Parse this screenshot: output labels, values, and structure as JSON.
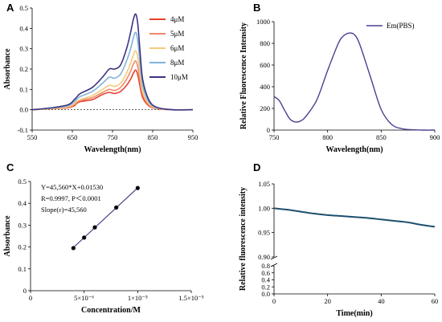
{
  "chart_data": [
    {
      "panel": "A",
      "type": "line",
      "xlabel": "Wavelength(nm)",
      "ylabel": "Absorbance",
      "xlim": [
        550,
        950
      ],
      "ylim": [
        -0.1,
        0.5
      ],
      "xticks": [
        550,
        650,
        750,
        850,
        950
      ],
      "yticks": [
        -0.1,
        0.0,
        0.1,
        0.2,
        0.3,
        0.4,
        0.5
      ],
      "ytick_labels": [
        "-0.1",
        "0.0",
        "0.1",
        "0.2",
        "0.3",
        "0.4",
        "0.5"
      ],
      "legend_position": "top-right",
      "x": [
        550,
        600,
        640,
        655,
        660,
        670,
        700,
        725,
        742,
        755,
        770,
        785,
        795,
        802,
        808,
        813,
        818,
        825,
        840,
        860,
        900,
        950
      ],
      "series": [
        {
          "name": "4μM",
          "color": "#e8402e",
          "values": [
            0.0,
            0.005,
            0.01,
            0.02,
            0.03,
            0.04,
            0.05,
            0.075,
            0.085,
            0.08,
            0.09,
            0.12,
            0.15,
            0.18,
            0.195,
            0.17,
            0.12,
            0.06,
            0.02,
            0.005,
            0.0,
            0.0
          ]
        },
        {
          "name": "5μM",
          "color": "#f08a6a",
          "values": [
            0.0,
            0.005,
            0.012,
            0.025,
            0.035,
            0.045,
            0.06,
            0.085,
            0.1,
            0.095,
            0.11,
            0.15,
            0.19,
            0.225,
            0.24,
            0.21,
            0.15,
            0.075,
            0.025,
            0.006,
            0.0,
            0.0
          ]
        },
        {
          "name": "6μM",
          "color": "#f5c97a",
          "values": [
            0.0,
            0.006,
            0.015,
            0.03,
            0.04,
            0.05,
            0.07,
            0.1,
            0.12,
            0.115,
            0.13,
            0.18,
            0.23,
            0.27,
            0.29,
            0.255,
            0.18,
            0.09,
            0.03,
            0.007,
            0.0,
            0.0
          ]
        },
        {
          "name": "8μM",
          "color": "#7fb3dc",
          "values": [
            0.0,
            0.008,
            0.02,
            0.04,
            0.05,
            0.065,
            0.09,
            0.13,
            0.16,
            0.155,
            0.175,
            0.24,
            0.3,
            0.355,
            0.38,
            0.335,
            0.24,
            0.12,
            0.04,
            0.01,
            0.0,
            0.0
          ]
        },
        {
          "name": "10μM",
          "color": "#3b3480",
          "values": [
            0.0,
            0.01,
            0.025,
            0.05,
            0.06,
            0.08,
            0.11,
            0.16,
            0.2,
            0.2,
            0.22,
            0.3,
            0.38,
            0.445,
            0.47,
            0.42,
            0.3,
            0.15,
            0.05,
            0.012,
            0.0,
            0.0
          ]
        }
      ]
    },
    {
      "panel": "B",
      "type": "line",
      "xlabel": "Wavelength(nm)",
      "ylabel": "Relative Fluorescence Intensity",
      "xlim": [
        750,
        900
      ],
      "ylim": [
        0,
        1000
      ],
      "xticks": [
        750,
        800,
        850,
        900
      ],
      "yticks": [
        0,
        200,
        400,
        600,
        800,
        1000
      ],
      "ytick_labels": [
        "0",
        "200",
        "400",
        "600",
        "800",
        "1000"
      ],
      "legend_position": "top-right",
      "series": [
        {
          "name": "Em(PBS)",
          "color": "#4a3f8f",
          "x": [
            750,
            755,
            760,
            765,
            770,
            775,
            780,
            790,
            800,
            810,
            815,
            820,
            825,
            830,
            840,
            850,
            860,
            870,
            880,
            890,
            900
          ],
          "values": [
            310,
            270,
            180,
            100,
            75,
            85,
            130,
            280,
            550,
            800,
            870,
            895,
            880,
            790,
            490,
            190,
            50,
            12,
            3,
            0,
            0
          ]
        }
      ]
    },
    {
      "panel": "C",
      "type": "scatter",
      "xlabel": "Concentration/M",
      "ylabel": "Absorbance",
      "xlim": [
        0,
        1.5e-05
      ],
      "ylim": [
        0,
        0.5
      ],
      "xticks": [
        0,
        5e-06,
        1e-05,
        1.5e-05
      ],
      "xtick_labels": [
        "0",
        "5×10⁻⁶",
        "1×10⁻⁵",
        "1.5×10⁻⁵"
      ],
      "yticks": [
        0,
        0.1,
        0.2,
        0.3,
        0.4,
        0.5
      ],
      "ytick_labels": [
        "0",
        "0.1",
        "0.2",
        "0.3",
        "0.4",
        "0.5"
      ],
      "annotations": [
        "Y=45,560*X+0.01530",
        "R=0.9997,  P＜0.0001",
        "Slope(ε)=45,560"
      ],
      "fit": {
        "slope": 45560,
        "intercept": 0.0153,
        "x_range": [
          4e-06,
          1e-05
        ],
        "color": "#3b3480"
      },
      "series": [
        {
          "color": "#000000",
          "x": [
            4e-06,
            5e-06,
            6e-06,
            8e-06,
            1e-05
          ],
          "values": [
            0.195,
            0.243,
            0.29,
            0.381,
            0.47
          ]
        }
      ]
    },
    {
      "panel": "D",
      "type": "line",
      "xlabel": "Time(min)",
      "ylabel": "Relative fluorescence intensity",
      "xlim": [
        0,
        60
      ],
      "ylim_lower": [
        0,
        0.8
      ],
      "ylim_upper": [
        0.9,
        1.05
      ],
      "broken_y_axis": true,
      "xticks": [
        0,
        20,
        40,
        60
      ],
      "yticks_upper": [
        0.9,
        0.95,
        1.0,
        1.05
      ],
      "ytick_labels_upper": [
        "0.90",
        "0.95",
        "1.00",
        "1.05"
      ],
      "yticks_lower": [
        0,
        0.2,
        0.4,
        0.6,
        0.8
      ],
      "ytick_labels_lower": [
        "0.0",
        "0.2",
        "0.4",
        "0.6",
        "0.8"
      ],
      "series": [
        {
          "color": "#1c4f6e",
          "x": [
            0,
            5,
            10,
            15,
            20,
            25,
            30,
            35,
            40,
            45,
            50,
            55,
            60
          ],
          "values": [
            1.0,
            0.997,
            0.993,
            0.989,
            0.986,
            0.984,
            0.982,
            0.98,
            0.977,
            0.974,
            0.971,
            0.966,
            0.962
          ]
        }
      ]
    }
  ],
  "panels": {
    "a": {
      "letter": "A"
    },
    "b": {
      "letter": "B"
    },
    "c": {
      "letter": "C"
    },
    "d": {
      "letter": "D"
    }
  }
}
